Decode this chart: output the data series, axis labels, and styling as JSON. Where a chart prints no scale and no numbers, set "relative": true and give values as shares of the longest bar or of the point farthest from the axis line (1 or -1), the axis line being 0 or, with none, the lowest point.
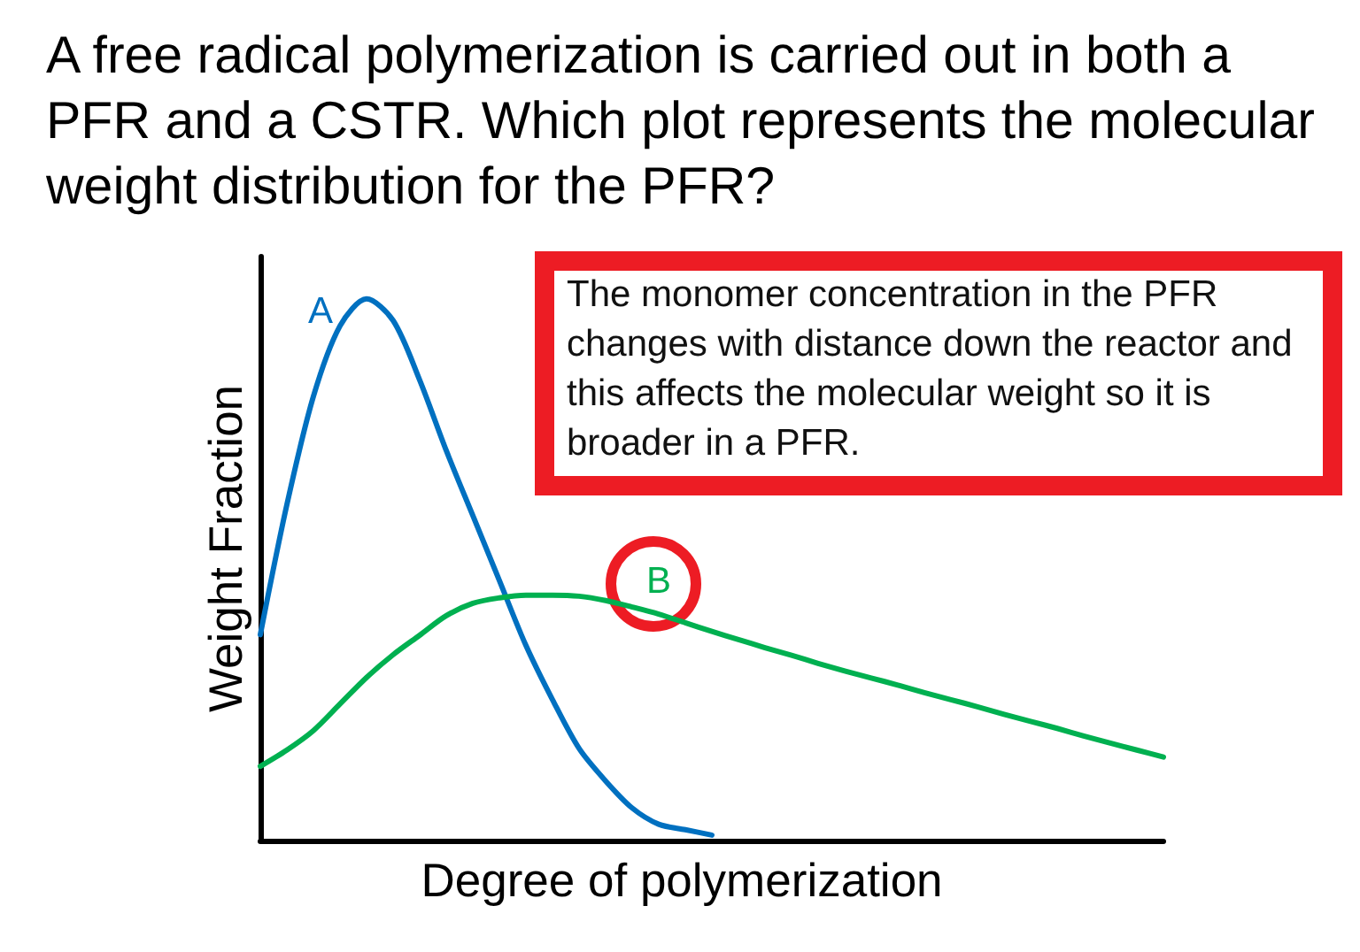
{
  "chart_data": {
    "type": "line",
    "title": "A free radical polymerization is carried out in both a PFR and a CSTR. Which plot represents the molecular weight distribution for the PFR?",
    "xlabel": "Degree of polymerization",
    "ylabel": "Weight Fraction",
    "annotations": [
      "The monomer concentration in the PFR changes with distance down the reactor and this affects the molecular weight so it is broader in a PFR."
    ],
    "categories": [
      null,
      null,
      null,
      null,
      null,
      null,
      null,
      null,
      null,
      null,
      null,
      null,
      null,
      null,
      null,
      null,
      null,
      null,
      null,
      null,
      null,
      null,
      null,
      null,
      null,
      null,
      null,
      null,
      null,
      null,
      null,
      null,
      null,
      null,
      null
    ],
    "relative": true,
    "series": [
      {
        "name": "A",
        "color": "#0070c0",
        "values": [
          0.38,
          0.62,
          0.82,
          0.95,
          1,
          0.96,
          0.85,
          0.72,
          0.6,
          0.48,
          0.36,
          0.26,
          0.17,
          0.11,
          0.06,
          0.03,
          0.02,
          0.01,
          null,
          null,
          null,
          null,
          null,
          null,
          null,
          null,
          null,
          null,
          null,
          null,
          null,
          null,
          null,
          null,
          null
        ]
      },
      {
        "name": "B",
        "color": "#00b050",
        "values": [
          0.137,
          0.167,
          0.203,
          0.252,
          0.301,
          0.343,
          0.379,
          0.415,
          0.438,
          0.448,
          0.453,
          0.453,
          0.451,
          0.443,
          0.431,
          0.418,
          0.402,
          0.386,
          0.371,
          0.356,
          0.342,
          0.327,
          0.313,
          0.3,
          0.287,
          0.273,
          0.26,
          0.247,
          0.233,
          0.22,
          0.207,
          0.193,
          0.18,
          0.167,
          0.154
        ]
      }
    ],
    "tick_labels": false,
    "marker": "none",
    "line_style": "solid"
  }
}
